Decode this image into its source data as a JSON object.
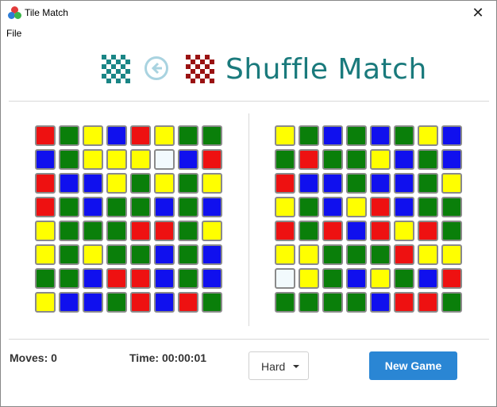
{
  "window": {
    "title": "Tile Match",
    "close_glyph": "✕"
  },
  "menu": {
    "file": "File"
  },
  "header": {
    "title": "Shuffle Match",
    "title_color": "#1a7a7c",
    "left_pattern_color": "#1a8585",
    "right_pattern_color": "#9a1212",
    "back_icon": "arrow-left-circle-icon"
  },
  "colors": {
    "R": "#ee1111",
    "G": "#0a7f0a",
    "B": "#1010ee",
    "Y": "#ffff00",
    "W": "#f2fafd"
  },
  "boards": {
    "left": [
      [
        "R",
        "G",
        "Y",
        "B",
        "R",
        "Y",
        "G",
        "G"
      ],
      [
        "B",
        "G",
        "Y",
        "Y",
        "Y",
        "W",
        "B",
        "R"
      ],
      [
        "R",
        "B",
        "B",
        "Y",
        "G",
        "Y",
        "G",
        "Y"
      ],
      [
        "R",
        "G",
        "B",
        "G",
        "G",
        "B",
        "G",
        "B"
      ],
      [
        "Y",
        "G",
        "G",
        "G",
        "R",
        "R",
        "G",
        "Y"
      ],
      [
        "Y",
        "G",
        "Y",
        "G",
        "G",
        "B",
        "G",
        "B"
      ],
      [
        "G",
        "G",
        "B",
        "R",
        "R",
        "B",
        "G",
        "B"
      ],
      [
        "Y",
        "B",
        "B",
        "G",
        "R",
        "B",
        "R",
        "G"
      ]
    ],
    "right": [
      [
        "Y",
        "G",
        "B",
        "G",
        "B",
        "G",
        "Y",
        "B"
      ],
      [
        "G",
        "R",
        "G",
        "G",
        "Y",
        "B",
        "G",
        "B"
      ],
      [
        "R",
        "B",
        "B",
        "G",
        "B",
        "B",
        "G",
        "Y"
      ],
      [
        "Y",
        "G",
        "B",
        "Y",
        "R",
        "B",
        "G",
        "G"
      ],
      [
        "R",
        "G",
        "R",
        "B",
        "R",
        "Y",
        "R",
        "G"
      ],
      [
        "Y",
        "Y",
        "G",
        "G",
        "G",
        "R",
        "Y",
        "Y"
      ],
      [
        "W",
        "Y",
        "G",
        "B",
        "Y",
        "G",
        "B",
        "R"
      ],
      [
        "G",
        "G",
        "G",
        "G",
        "B",
        "R",
        "R",
        "G"
      ]
    ]
  },
  "status": {
    "moves": "Moves: 0",
    "time": "Time: 00:00:01"
  },
  "difficulty": {
    "selected": "Hard"
  },
  "new_game": {
    "label": "New Game",
    "color": "#2a86d4"
  }
}
